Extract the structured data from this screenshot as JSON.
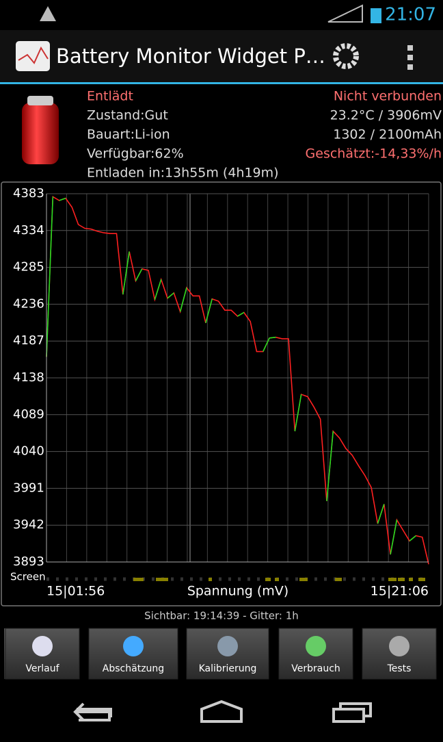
{
  "status_bar": {
    "time": "21:07"
  },
  "app_bar": {
    "title": "Battery Monitor Widget P…"
  },
  "info": {
    "left": [
      "Entlädt",
      "Zustand:Gut",
      "Bauart:Li-ion",
      "Verfügbar:62%",
      "Entladen in:13h55m (4h19m)"
    ],
    "right": [
      "Nicht verbunden",
      "23.2°C / 3906mV",
      "1302 / 2100mAh",
      "Geschätzt:-14,33%/h"
    ]
  },
  "chart_data": {
    "type": "line",
    "xlabel": "Spannung (mV)",
    "x_range_labels": [
      "15|01:56",
      "15|21:06"
    ],
    "track_label": "Screen",
    "ylim": [
      3893,
      4383
    ],
    "yticks": [
      3893,
      3942,
      3991,
      4040,
      4089,
      4138,
      4187,
      4236,
      4285,
      4334,
      4383
    ],
    "color": "#ff2020",
    "rising_color": "#20dd20",
    "values": [
      4166,
      4379,
      4374,
      4377,
      4365,
      4342,
      4337,
      4336,
      4333,
      4331,
      4330,
      4330,
      4249,
      4306,
      4267,
      4283,
      4281,
      4242,
      4269,
      4244,
      4251,
      4226,
      4258,
      4247,
      4247,
      4211,
      4243,
      4240,
      4228,
      4228,
      4220,
      4225,
      4213,
      4173,
      4173,
      4191,
      4192,
      4190,
      4190,
      4067,
      4116,
      4113,
      4099,
      4083,
      3974,
      4067,
      4058,
      4044,
      4035,
      4021,
      4008,
      3992,
      3944,
      3970,
      3903,
      3949,
      3935,
      3921,
      3928,
      3926,
      3890
    ]
  },
  "footer": {
    "text": "Sichtbar: 19:14:39 - Gitter: 1h"
  },
  "buttons": [
    "Verlauf",
    "Abschätzung",
    "Kalibrierung",
    "Verbrauch",
    "Tests"
  ]
}
